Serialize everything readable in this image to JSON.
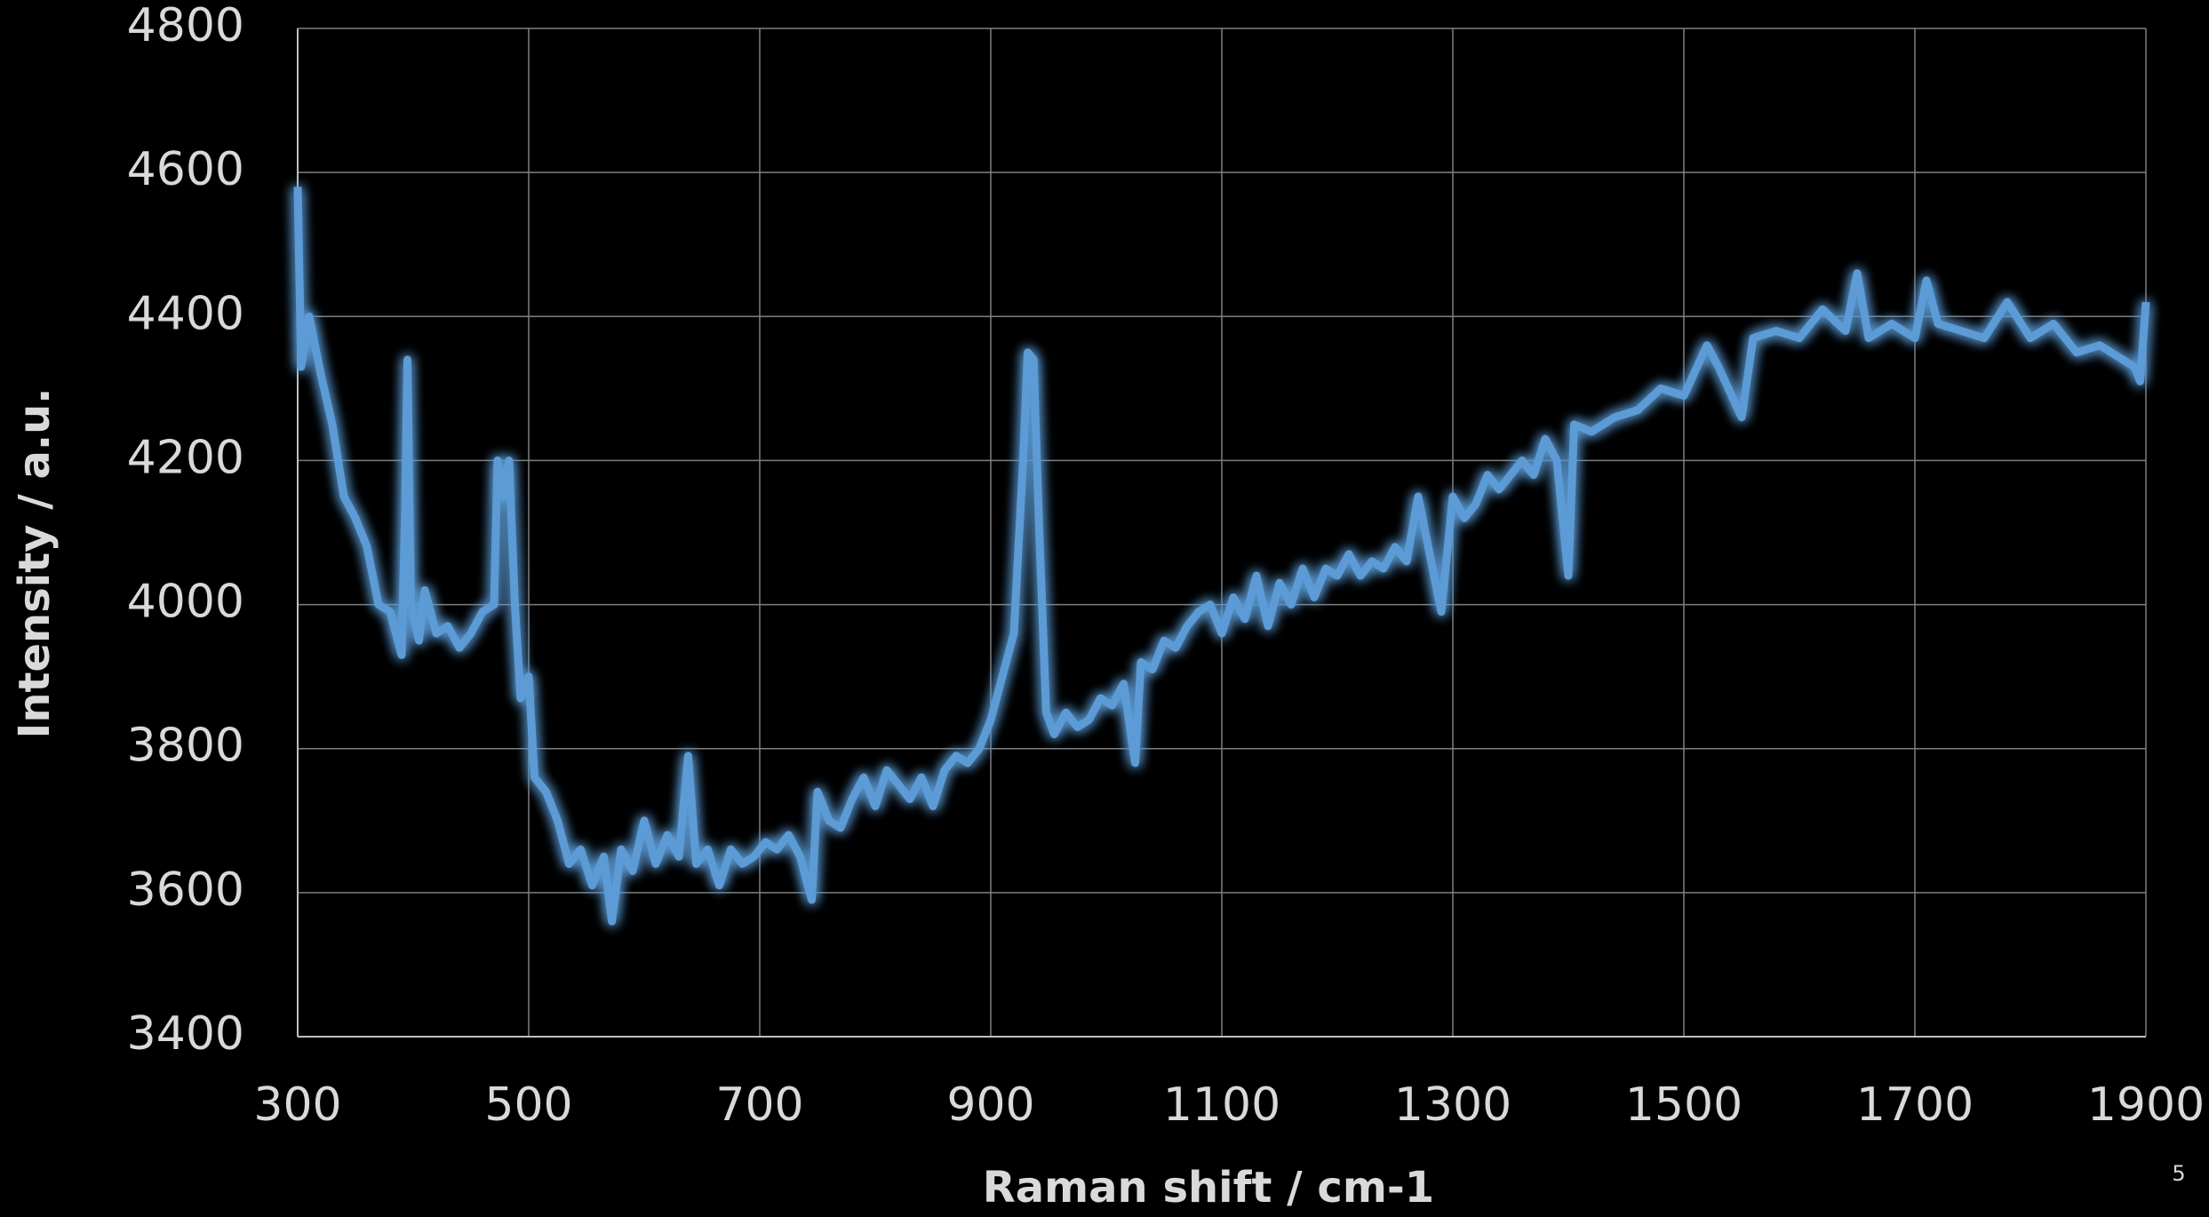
{
  "chart_data": {
    "type": "line",
    "x_label": "Raman shift / cm-1",
    "y_label": "Intensity / a.u.",
    "annotations": [
      "5"
    ],
    "xlim": [
      300,
      1900
    ],
    "xticks": [
      300,
      500,
      700,
      900,
      1100,
      1300,
      1500,
      1700,
      1900
    ],
    "ylim": [
      3400,
      4800
    ],
    "yticks": [
      3400,
      3600,
      3800,
      4000,
      4200,
      4400,
      4600,
      4800
    ],
    "grid": true,
    "x": [
      300,
      303,
      310,
      320,
      330,
      340,
      350,
      360,
      370,
      380,
      390,
      393,
      395,
      398,
      405,
      410,
      420,
      430,
      440,
      450,
      460,
      470,
      473,
      478,
      483,
      488,
      493,
      500,
      505,
      515,
      525,
      535,
      545,
      555,
      565,
      572,
      580,
      590,
      600,
      610,
      620,
      630,
      638,
      645,
      655,
      665,
      675,
      685,
      695,
      705,
      715,
      725,
      735,
      745,
      750,
      760,
      770,
      780,
      790,
      800,
      810,
      820,
      830,
      840,
      850,
      860,
      870,
      880,
      890,
      900,
      910,
      920,
      928,
      932,
      937,
      942,
      948,
      955,
      965,
      975,
      985,
      995,
      1005,
      1015,
      1025,
      1030,
      1040,
      1050,
      1060,
      1070,
      1080,
      1090,
      1100,
      1110,
      1120,
      1130,
      1140,
      1150,
      1160,
      1170,
      1180,
      1190,
      1200,
      1210,
      1220,
      1230,
      1240,
      1250,
      1260,
      1270,
      1280,
      1290,
      1300,
      1310,
      1320,
      1330,
      1340,
      1350,
      1360,
      1370,
      1380,
      1390,
      1400,
      1405,
      1420,
      1440,
      1460,
      1480,
      1500,
      1520,
      1530,
      1550,
      1560,
      1580,
      1600,
      1620,
      1640,
      1650,
      1660,
      1680,
      1700,
      1710,
      1720,
      1740,
      1760,
      1780,
      1800,
      1820,
      1840,
      1860,
      1880,
      1890,
      1895,
      1900
    ],
    "series": [
      {
        "color": "#5b9bd5",
        "values": [
          4580,
          4330,
          4400,
          4320,
          4250,
          4150,
          4120,
          4080,
          4000,
          3990,
          3930,
          4130,
          4340,
          4000,
          3950,
          4020,
          3960,
          3970,
          3940,
          3960,
          3990,
          4000,
          4200,
          4150,
          4200,
          4000,
          3870,
          3900,
          3760,
          3740,
          3700,
          3640,
          3660,
          3610,
          3650,
          3560,
          3660,
          3630,
          3700,
          3640,
          3680,
          3650,
          3790,
          3640,
          3660,
          3610,
          3660,
          3640,
          3650,
          3670,
          3660,
          3680,
          3650,
          3590,
          3740,
          3700,
          3690,
          3730,
          3760,
          3720,
          3770,
          3750,
          3730,
          3760,
          3720,
          3770,
          3790,
          3780,
          3800,
          3840,
          3900,
          3960,
          4200,
          4350,
          4340,
          4100,
          3850,
          3820,
          3850,
          3830,
          3840,
          3870,
          3860,
          3890,
          3780,
          3920,
          3910,
          3950,
          3940,
          3970,
          3990,
          4000,
          3960,
          4010,
          3980,
          4040,
          3970,
          4030,
          4000,
          4050,
          4010,
          4050,
          4040,
          4070,
          4040,
          4060,
          4050,
          4080,
          4060,
          4150,
          4070,
          3990,
          4150,
          4120,
          4140,
          4180,
          4160,
          4180,
          4200,
          4180,
          4230,
          4200,
          4040,
          4250,
          4240,
          4260,
          4270,
          4300,
          4290,
          4360,
          4330,
          4260,
          4370,
          4380,
          4370,
          4410,
          4380,
          4460,
          4370,
          4390,
          4370,
          4450,
          4390,
          4380,
          4370,
          4420,
          4370,
          4390,
          4350,
          4360,
          4340,
          4330,
          4310,
          4420
        ]
      }
    ]
  }
}
